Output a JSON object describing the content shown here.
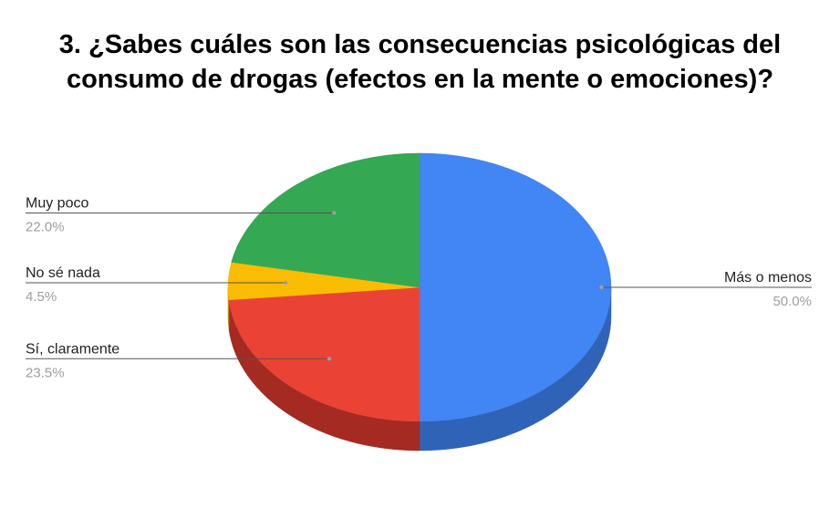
{
  "chart_data": {
    "type": "pie",
    "title_lines": [
      "3. ¿Sabes cuáles son las consecuencias psicológicas del",
      "consumo de drogas (efectos en la mente o emociones)?"
    ],
    "style": "3d",
    "slices": [
      {
        "label": "Más o menos",
        "value": 50.0,
        "value_label": "50.0%",
        "color": "#4285f4",
        "side_color": "#2f63b8"
      },
      {
        "label": "Sí, claramente",
        "value": 23.5,
        "value_label": "23.5%",
        "color": "#ea4335",
        "side_color": "#a52a22"
      },
      {
        "label": "No sé nada",
        "value": 4.5,
        "value_label": "4.5%",
        "color": "#fbbc04",
        "side_color": "#c48f00"
      },
      {
        "label": "Muy poco",
        "value": 22.0,
        "value_label": "22.0%",
        "color": "#34a853",
        "side_color": "#23793a"
      }
    ],
    "legend": "none",
    "labels_position": "outside-with-leader-lines"
  }
}
